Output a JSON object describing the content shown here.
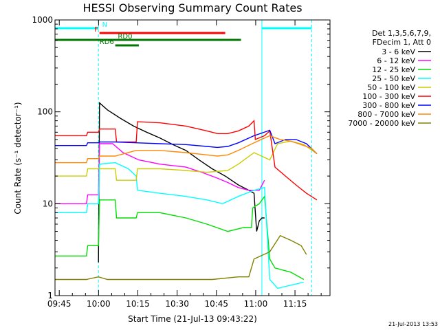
{
  "chart_data": {
    "type": "line",
    "title": "HESSI Observing Summary Count Rates",
    "xlabel": "Start Time (21-Jul-13 09:43:22)",
    "ylabel": "Count Rate (s⁻¹ detector⁻¹)",
    "y_scale": "log",
    "ylim": [
      1,
      1000
    ],
    "x_unit": "minutes after 09:43:22",
    "xlim": [
      0,
      105
    ],
    "x_ticks": [
      {
        "value": 1.63,
        "label": "09:45"
      },
      {
        "value": 16.63,
        "label": "10:00"
      },
      {
        "value": 31.63,
        "label": "10:15"
      },
      {
        "value": 46.63,
        "label": "10:30"
      },
      {
        "value": 61.63,
        "label": "10:45"
      },
      {
        "value": 76.63,
        "label": "11:00"
      },
      {
        "value": 91.63,
        "label": "11:15"
      }
    ],
    "y_ticks": [
      {
        "value": 1,
        "label": "1"
      },
      {
        "value": 10,
        "label": "10"
      },
      {
        "value": 100,
        "label": "100"
      },
      {
        "value": 1000,
        "label": "1000"
      }
    ],
    "grid": false,
    "legend_position": "right",
    "legend_header": [
      "Det 1,3,5,6,7,9,",
      "FDecim 1, Att 0"
    ],
    "series": [
      {
        "name": "3 - 6 keV",
        "color": "#000000",
        "points": [
          [
            16.6,
            2.3
          ],
          [
            17,
            125
          ],
          [
            20,
            105
          ],
          [
            25,
            85
          ],
          [
            30,
            70
          ],
          [
            35,
            60
          ],
          [
            40,
            52
          ],
          [
            45,
            44
          ],
          [
            50,
            38
          ],
          [
            55,
            30
          ],
          [
            60,
            24
          ],
          [
            65,
            20
          ],
          [
            70,
            16
          ],
          [
            74,
            14
          ],
          [
            76,
            13
          ],
          [
            77,
            5
          ],
          [
            78,
            6.5
          ],
          [
            79,
            7
          ],
          [
            80,
            7
          ]
        ]
      },
      {
        "name": "6 - 12 keV",
        "color": "#ff00ff",
        "points": [
          [
            0,
            10
          ],
          [
            12,
            10
          ],
          [
            12.5,
            12.5
          ],
          [
            16.6,
            12.5
          ],
          [
            17,
            45
          ],
          [
            22,
            45
          ],
          [
            26,
            36
          ],
          [
            32,
            30
          ],
          [
            40,
            27
          ],
          [
            50,
            25
          ],
          [
            56,
            22
          ],
          [
            62,
            19
          ],
          [
            66,
            17
          ],
          [
            70,
            15
          ],
          [
            74,
            14
          ],
          [
            78,
            14
          ],
          [
            80,
            18
          ]
        ]
      },
      {
        "name": "12 - 25 keV",
        "color": "#00dd00",
        "points": [
          [
            0,
            2.7
          ],
          [
            12,
            2.7
          ],
          [
            12.5,
            3.5
          ],
          [
            16.6,
            3.5
          ],
          [
            17,
            11
          ],
          [
            23,
            11
          ],
          [
            23.5,
            7
          ],
          [
            31,
            7
          ],
          [
            31.5,
            8
          ],
          [
            40,
            8
          ],
          [
            50,
            7
          ],
          [
            58,
            6
          ],
          [
            66,
            5
          ],
          [
            72,
            5.5
          ],
          [
            75,
            5.5
          ],
          [
            75.5,
            9
          ],
          [
            78,
            10
          ],
          [
            80,
            12
          ],
          [
            82,
            2.5
          ],
          [
            84,
            2
          ],
          [
            90,
            1.8
          ],
          [
            95,
            1.5
          ]
        ]
      },
      {
        "name": "25 - 50 keV",
        "color": "#00ffff",
        "points": [
          [
            0,
            8
          ],
          [
            12,
            8
          ],
          [
            12.5,
            10
          ],
          [
            16.6,
            10
          ],
          [
            17,
            27
          ],
          [
            23,
            28
          ],
          [
            28,
            24
          ],
          [
            31,
            20
          ],
          [
            31.5,
            14
          ],
          [
            40,
            13
          ],
          [
            50,
            12
          ],
          [
            58,
            11
          ],
          [
            64,
            10
          ],
          [
            70,
            12
          ],
          [
            76,
            14
          ],
          [
            80,
            15
          ],
          [
            82,
            1.5
          ],
          [
            85,
            1.2
          ],
          [
            90,
            1.3
          ],
          [
            95,
            1.4
          ]
        ]
      },
      {
        "name": "50 - 100 keV",
        "color": "#cccc00",
        "points": [
          [
            0,
            20
          ],
          [
            12,
            20
          ],
          [
            12.5,
            24
          ],
          [
            16.6,
            24
          ],
          [
            17,
            24
          ],
          [
            23,
            24
          ],
          [
            23.5,
            18
          ],
          [
            31,
            18
          ],
          [
            31.5,
            24
          ],
          [
            40,
            24
          ],
          [
            50,
            23
          ],
          [
            58,
            22
          ],
          [
            66,
            23
          ],
          [
            70,
            27
          ],
          [
            76,
            36
          ],
          [
            82,
            30
          ],
          [
            85,
            45
          ],
          [
            90,
            48
          ],
          [
            95,
            44
          ],
          [
            100,
            35
          ]
        ]
      },
      {
        "name": "100 - 300 keV",
        "color": "#ff0000",
        "points": [
          [
            0,
            55
          ],
          [
            12,
            55
          ],
          [
            12.5,
            60
          ],
          [
            16.6,
            60
          ],
          [
            17,
            65
          ],
          [
            23,
            65
          ],
          [
            23.5,
            47
          ],
          [
            31,
            47
          ],
          [
            31.5,
            78
          ],
          [
            40,
            76
          ],
          [
            50,
            70
          ],
          [
            58,
            62
          ],
          [
            62,
            58
          ],
          [
            66,
            58
          ],
          [
            70,
            62
          ],
          [
            74,
            70
          ],
          [
            76,
            80
          ],
          [
            76.5,
            50
          ],
          [
            80,
            55
          ],
          [
            82,
            62
          ],
          [
            84,
            25
          ],
          [
            88,
            20
          ],
          [
            92,
            16
          ],
          [
            96,
            13
          ],
          [
            100,
            11
          ]
        ]
      },
      {
        "name": "300 - 800 keV",
        "color": "#0000ff",
        "points": [
          [
            0,
            43
          ],
          [
            12,
            43
          ],
          [
            12.5,
            46
          ],
          [
            16.6,
            46
          ],
          [
            17,
            47
          ],
          [
            23,
            47
          ],
          [
            31,
            46
          ],
          [
            40,
            45
          ],
          [
            50,
            44
          ],
          [
            58,
            42
          ],
          [
            62,
            41
          ],
          [
            66,
            42
          ],
          [
            70,
            46
          ],
          [
            76,
            55
          ],
          [
            82,
            63
          ],
          [
            84,
            45
          ],
          [
            88,
            50
          ],
          [
            92,
            50
          ],
          [
            96,
            45
          ],
          [
            100,
            35
          ]
        ]
      },
      {
        "name": "800 - 7000 keV",
        "color": "#ff8800",
        "points": [
          [
            0,
            28
          ],
          [
            12,
            28
          ],
          [
            12.5,
            31
          ],
          [
            16.6,
            31
          ],
          [
            17,
            33
          ],
          [
            23,
            33
          ],
          [
            31,
            38
          ],
          [
            40,
            38
          ],
          [
            50,
            36
          ],
          [
            58,
            34
          ],
          [
            62,
            33
          ],
          [
            66,
            34
          ],
          [
            70,
            38
          ],
          [
            76,
            46
          ],
          [
            82,
            55
          ],
          [
            86,
            50
          ],
          [
            90,
            48
          ],
          [
            94,
            44
          ],
          [
            98,
            40
          ],
          [
            100,
            35
          ]
        ]
      },
      {
        "name": "7000 - 20000 keV",
        "color": "#808000",
        "points": [
          [
            0,
            1.5
          ],
          [
            12,
            1.5
          ],
          [
            16.6,
            1.6
          ],
          [
            20,
            1.5
          ],
          [
            30,
            1.5
          ],
          [
            40,
            1.5
          ],
          [
            50,
            1.5
          ],
          [
            60,
            1.5
          ],
          [
            70,
            1.6
          ],
          [
            74,
            1.6
          ],
          [
            76,
            2.5
          ],
          [
            82,
            3
          ],
          [
            86,
            4.5
          ],
          [
            90,
            4
          ],
          [
            94,
            3.5
          ],
          [
            96,
            2.8
          ]
        ]
      }
    ],
    "bars": [
      {
        "label": "N",
        "color": "#00ffff",
        "start": 0,
        "end": 16.6,
        "level": 2,
        "label_at": 18
      },
      {
        "label": "",
        "color": "#00ffff",
        "start": 79,
        "end": 98,
        "level": 2,
        "label_at": null
      },
      {
        "label": "F",
        "color": "#ff0000",
        "start": 17,
        "end": 65,
        "level": 1,
        "label_at": 15
      },
      {
        "label": "RD0",
        "color": "#007700",
        "start": 0,
        "end": 71,
        "level": 0,
        "label_at": 24
      },
      {
        "label": "RD6",
        "color": "#007700",
        "start": 23,
        "end": 32,
        "level": -1,
        "label_at": 17
      }
    ],
    "vlines": [
      {
        "x": 0,
        "color": "#00ffff",
        "dash": false
      },
      {
        "x": 16.6,
        "color": "#00ffff",
        "dash": true
      },
      {
        "x": 79,
        "color": "#00ffff",
        "dash": false
      },
      {
        "x": 98,
        "color": "#00ffff",
        "dash": true
      }
    ],
    "timestamp": "21-Jul-2013 13:53"
  }
}
